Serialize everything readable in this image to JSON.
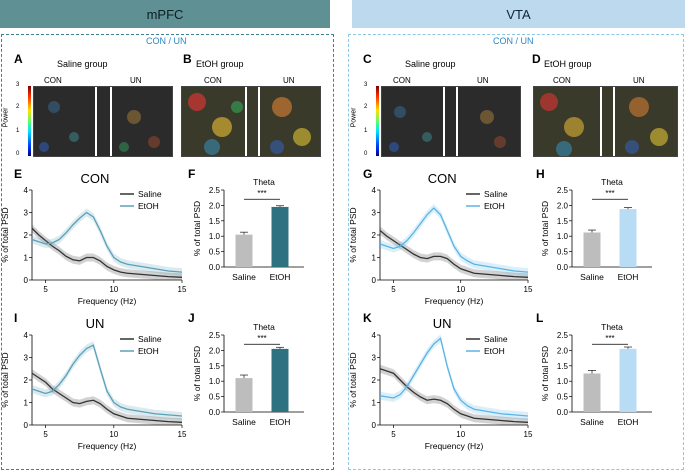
{
  "regions": {
    "left": {
      "title": "mPFC",
      "subtitle": "CON / UN"
    },
    "right": {
      "title": "VTA",
      "subtitle": "CON / UN"
    }
  },
  "colors": {
    "left_header": "#5f9094",
    "right_header": "#bcd9ee",
    "saline_line": "#333333",
    "etoh_line_mpfc": "#5aa0b8",
    "etoh_line_vta": "#5ab4e6",
    "saline_bar": "#bdbdbd",
    "etoh_bar_mpfc": "#2e7180",
    "etoh_bar_vta": "#b7dcf3"
  },
  "panels": {
    "A": {
      "letter": "A",
      "title": "Saline group",
      "labels": [
        "CON",
        "UN"
      ],
      "power_label": "Power",
      "colorbar_ticks": [
        "3",
        "2",
        "1",
        "0"
      ]
    },
    "B": {
      "letter": "B",
      "title": "EtOH group",
      "labels": [
        "CON",
        "UN"
      ]
    },
    "C": {
      "letter": "C",
      "title": "Saline group",
      "labels": [
        "CON",
        "UN"
      ],
      "power_label": "Power",
      "colorbar_ticks": [
        "3",
        "2",
        "1",
        "0"
      ]
    },
    "D": {
      "letter": "D",
      "title": "EtOH group",
      "labels": [
        "CON",
        "UN"
      ]
    },
    "E": {
      "letter": "E",
      "title": "CON"
    },
    "F": {
      "letter": "F"
    },
    "G": {
      "letter": "G",
      "title": "CON"
    },
    "H": {
      "letter": "H"
    },
    "I": {
      "letter": "I",
      "title": "UN"
    },
    "J": {
      "letter": "J"
    },
    "K": {
      "letter": "K",
      "title": "UN"
    },
    "L": {
      "letter": "L"
    }
  },
  "chart_data": [
    {
      "id": "E",
      "type": "line",
      "title": "CON",
      "xlabel": "Frequency (Hz)",
      "ylabel": "% of total PSD",
      "xlim": [
        4,
        15
      ],
      "ylim": [
        0,
        4
      ],
      "xticks": [
        5,
        10,
        15
      ],
      "yticks": [
        0,
        1,
        2,
        3,
        4
      ],
      "legend": [
        "Saline",
        "EtOH"
      ],
      "legend_position": "top-right",
      "series": [
        {
          "name": "Saline",
          "x": [
            4,
            4.5,
            5,
            5.5,
            6,
            6.5,
            7,
            7.5,
            8,
            8.5,
            9,
            9.5,
            10,
            10.5,
            11,
            12,
            13,
            14,
            15
          ],
          "y": [
            2.3,
            2.0,
            1.75,
            1.5,
            1.3,
            1.05,
            0.9,
            0.85,
            1.0,
            1.0,
            0.85,
            0.6,
            0.45,
            0.35,
            0.3,
            0.25,
            0.2,
            0.15,
            0.12
          ]
        },
        {
          "name": "EtOH",
          "x": [
            4,
            4.5,
            5,
            5.5,
            6,
            6.5,
            7,
            7.5,
            8,
            8.5,
            9,
            9.5,
            10,
            10.5,
            11,
            12,
            13,
            14,
            15
          ],
          "y": [
            1.8,
            1.7,
            1.6,
            1.65,
            1.8,
            2.1,
            2.45,
            2.75,
            3.0,
            2.8,
            2.2,
            1.5,
            1.0,
            0.8,
            0.7,
            0.6,
            0.5,
            0.4,
            0.35
          ]
        }
      ]
    },
    {
      "id": "F",
      "type": "bar",
      "title": "Theta",
      "ylabel": "% of total PSD",
      "ylim": [
        0,
        2.5
      ],
      "yticks": [
        0.0,
        0.5,
        1.0,
        1.5,
        2.0,
        2.5
      ],
      "categories": [
        "Saline",
        "EtOH"
      ],
      "values": [
        1.05,
        1.95
      ],
      "errors": [
        0.08,
        0.04
      ],
      "significance": "***"
    },
    {
      "id": "G",
      "type": "line",
      "title": "CON",
      "xlabel": "Frequency (Hz)",
      "ylabel": "% of total PSD",
      "xlim": [
        4,
        15
      ],
      "ylim": [
        0,
        4
      ],
      "xticks": [
        5,
        10,
        15
      ],
      "yticks": [
        0,
        1,
        2,
        3,
        4
      ],
      "legend": [
        "Saline",
        "EtOH"
      ],
      "legend_position": "top-right",
      "series": [
        {
          "name": "Saline",
          "x": [
            4,
            4.5,
            5,
            5.5,
            6,
            6.5,
            7,
            7.5,
            8,
            8.5,
            9,
            9.5,
            10,
            10.5,
            11,
            12,
            13,
            14,
            15
          ],
          "y": [
            2.2,
            1.95,
            1.75,
            1.55,
            1.35,
            1.15,
            1.0,
            0.95,
            1.05,
            1.05,
            0.95,
            0.7,
            0.5,
            0.4,
            0.3,
            0.25,
            0.2,
            0.15,
            0.12
          ]
        },
        {
          "name": "EtOH",
          "x": [
            4,
            4.5,
            5,
            5.5,
            6,
            6.5,
            7,
            7.5,
            8,
            8.5,
            9,
            9.5,
            10,
            10.5,
            11,
            12,
            13,
            14,
            15
          ],
          "y": [
            1.6,
            1.5,
            1.4,
            1.5,
            1.75,
            2.1,
            2.5,
            2.9,
            3.2,
            2.9,
            2.2,
            1.5,
            1.05,
            0.85,
            0.7,
            0.6,
            0.5,
            0.4,
            0.35
          ]
        }
      ]
    },
    {
      "id": "H",
      "type": "bar",
      "title": "Theta",
      "ylabel": "% of total PSD",
      "ylim": [
        0,
        2.5
      ],
      "yticks": [
        0.0,
        0.5,
        1.0,
        1.5,
        2.0,
        2.5
      ],
      "categories": [
        "Saline",
        "EtOH"
      ],
      "values": [
        1.12,
        1.88
      ],
      "errors": [
        0.08,
        0.05
      ],
      "significance": "***"
    },
    {
      "id": "I",
      "type": "line",
      "title": "UN",
      "xlabel": "Frequency (Hz)",
      "ylabel": "% of total PSD",
      "xlim": [
        4,
        15
      ],
      "ylim": [
        0,
        4
      ],
      "xticks": [
        5,
        10,
        15
      ],
      "yticks": [
        0,
        1,
        2,
        3,
        4
      ],
      "legend": [
        "Saline",
        "EtOH"
      ],
      "legend_position": "top-right",
      "series": [
        {
          "name": "Saline",
          "x": [
            4,
            4.5,
            5,
            5.5,
            6,
            6.5,
            7,
            7.5,
            8,
            8.5,
            9,
            9.5,
            10,
            10.5,
            11,
            12,
            13,
            14,
            15
          ],
          "y": [
            2.3,
            2.1,
            1.9,
            1.6,
            1.4,
            1.2,
            1.0,
            0.95,
            1.05,
            1.1,
            0.95,
            0.7,
            0.5,
            0.4,
            0.3,
            0.25,
            0.2,
            0.15,
            0.12
          ]
        },
        {
          "name": "EtOH",
          "x": [
            4,
            4.5,
            5,
            5.5,
            6,
            6.5,
            7,
            7.5,
            8,
            8.5,
            9,
            9.5,
            10,
            10.5,
            11,
            12,
            13,
            14,
            15
          ],
          "y": [
            1.6,
            1.5,
            1.4,
            1.5,
            1.8,
            2.2,
            2.7,
            3.1,
            3.4,
            3.55,
            2.5,
            1.5,
            1.0,
            0.8,
            0.7,
            0.6,
            0.5,
            0.45,
            0.4
          ]
        }
      ]
    },
    {
      "id": "J",
      "type": "bar",
      "title": "Theta",
      "ylabel": "% of total PSD",
      "ylim": [
        0,
        2.5
      ],
      "yticks": [
        0.0,
        0.5,
        1.0,
        1.5,
        2.0,
        2.5
      ],
      "categories": [
        "Saline",
        "EtOH"
      ],
      "values": [
        1.1,
        2.05
      ],
      "errors": [
        0.1,
        0.05
      ],
      "significance": "***"
    },
    {
      "id": "K",
      "type": "line",
      "title": "UN",
      "xlabel": "Frequency (Hz)",
      "ylabel": "% of total PSD",
      "xlim": [
        4,
        15
      ],
      "ylim": [
        0,
        4
      ],
      "xticks": [
        5,
        10,
        15
      ],
      "yticks": [
        0,
        1,
        2,
        3,
        4
      ],
      "legend": [
        "Saline",
        "EtOH"
      ],
      "legend_position": "top-right",
      "series": [
        {
          "name": "Saline",
          "x": [
            4,
            4.5,
            5,
            5.5,
            6,
            6.5,
            7,
            7.5,
            8,
            8.5,
            9,
            9.5,
            10,
            10.5,
            11,
            12,
            13,
            14,
            15
          ],
          "y": [
            2.5,
            2.4,
            2.3,
            2.0,
            1.7,
            1.45,
            1.25,
            1.1,
            1.15,
            1.1,
            0.95,
            0.7,
            0.5,
            0.4,
            0.3,
            0.25,
            0.2,
            0.15,
            0.12
          ]
        },
        {
          "name": "EtOH",
          "x": [
            4,
            4.5,
            5,
            5.5,
            6,
            6.5,
            7,
            7.5,
            8,
            8.5,
            9,
            9.5,
            10,
            10.5,
            11,
            12,
            13,
            14,
            15
          ],
          "y": [
            1.3,
            1.25,
            1.2,
            1.35,
            1.7,
            2.2,
            2.7,
            3.2,
            3.6,
            3.85,
            2.6,
            1.6,
            1.1,
            0.85,
            0.7,
            0.6,
            0.5,
            0.45,
            0.4
          ]
        }
      ]
    },
    {
      "id": "L",
      "type": "bar",
      "title": "Theta",
      "ylabel": "% of total PSD",
      "ylim": [
        0,
        2.5
      ],
      "yticks": [
        0.0,
        0.5,
        1.0,
        1.5,
        2.0,
        2.5
      ],
      "categories": [
        "Saline",
        "EtOH"
      ],
      "values": [
        1.25,
        2.05
      ],
      "errors": [
        0.1,
        0.06
      ],
      "significance": "***"
    }
  ]
}
